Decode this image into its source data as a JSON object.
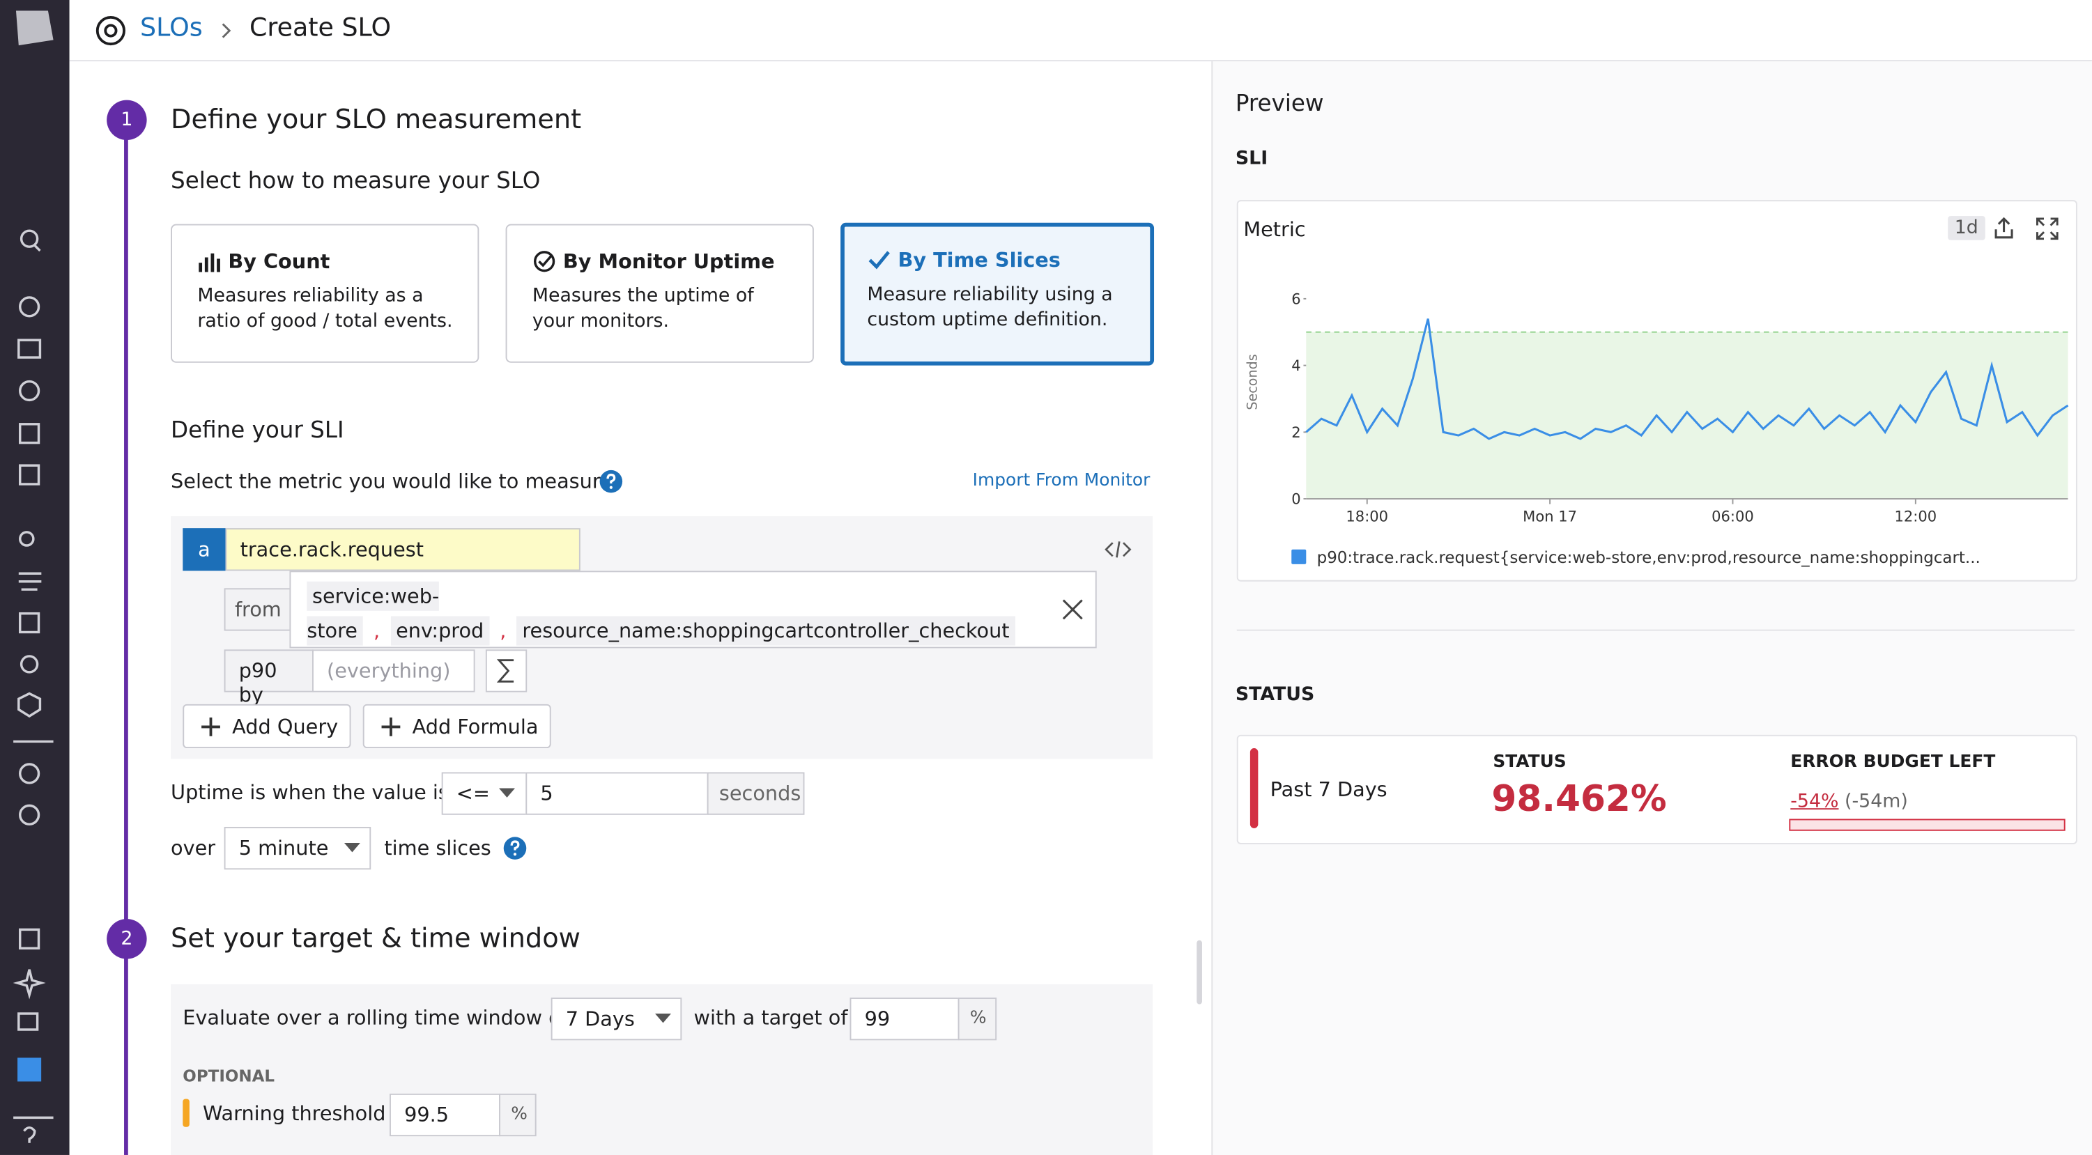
{
  "breadcrumb": {
    "parent": "SLOs",
    "current": "Create SLO"
  },
  "step1": {
    "number": "1",
    "title": "Define your SLO measurement",
    "subtitle": "Select how to measure your SLO",
    "options": [
      {
        "title": "By Count",
        "description": "Measures reliability as a ratio of good / total events."
      },
      {
        "title": "By Monitor Uptime",
        "description": "Measures the uptime of your monitors."
      },
      {
        "title": "By Time Slices",
        "description": "Measure reliability using a custom uptime definition."
      }
    ]
  },
  "sli": {
    "title": "Define your SLI",
    "prompt": "Select the metric you would like to measure.",
    "import_link": "Import From Monitor",
    "query": {
      "letter": "a",
      "metric": "trace.rack.request",
      "from_label": "from",
      "separator": ",",
      "tags": [
        "service:web-store",
        "env:prod",
        "resource_name:shoppingcartcontroller_checkout"
      ],
      "aggregation": "p90 by",
      "group_placeholder": "(everything)"
    },
    "add_query": "Add Query",
    "add_formula": "Add Formula",
    "uptime": {
      "label": "Uptime is when the value is",
      "operator": "<=",
      "threshold": "5",
      "unit": "seconds"
    },
    "over": {
      "label": "over",
      "window": "5 minute",
      "suffix": "time slices"
    }
  },
  "step2": {
    "number": "2",
    "title": "Set your target & time window",
    "window_label": "Evaluate over a rolling time window of",
    "window": "7 Days",
    "target_label": "with a target of",
    "target": "99",
    "target_unit": "%",
    "optional": "OPTIONAL",
    "warning_label": "Warning threshold",
    "warning": "99.5",
    "warning_unit": "%"
  },
  "preview": {
    "title": "Preview",
    "sli_heading": "SLI",
    "widget_title": "Metric",
    "timeframe": "1d",
    "chart_data": {
      "type": "line",
      "y_label": "Seconds",
      "ylim": [
        0,
        7
      ],
      "yticks": [
        0,
        2,
        4,
        6
      ],
      "xlim": [
        16,
        41
      ],
      "xticks": [
        {
          "value": 18,
          "label": "18:00"
        },
        {
          "value": 24,
          "label": "Mon 17"
        },
        {
          "value": 30,
          "label": "06:00"
        },
        {
          "value": 36,
          "label": "12:00"
        }
      ],
      "threshold": 5,
      "x": [
        16,
        16.5,
        17,
        17.5,
        18,
        18.5,
        19,
        19.5,
        20,
        20.5,
        21,
        21.5,
        22,
        22.5,
        23,
        23.5,
        24,
        24.5,
        25,
        25.5,
        26,
        26.5,
        27,
        27.5,
        28,
        28.5,
        29,
        29.5,
        30,
        30.5,
        31,
        31.5,
        32,
        32.5,
        33,
        33.5,
        34,
        34.5,
        35,
        35.5,
        36,
        36.5,
        37,
        37.5,
        38,
        38.5,
        39,
        39.5,
        40,
        40.5,
        41
      ],
      "series": [
        {
          "name": "p90:trace.rack.request{service:web-store,env:prod,resource_name:shoppingcart...",
          "color": "#3a8ee6",
          "values": [
            2.0,
            2.4,
            2.2,
            3.1,
            2.0,
            2.7,
            2.2,
            3.6,
            5.4,
            2.0,
            1.9,
            2.1,
            1.8,
            2.0,
            1.9,
            2.1,
            1.9,
            2.0,
            1.8,
            2.1,
            2.0,
            2.2,
            1.9,
            2.5,
            2.0,
            2.6,
            2.1,
            2.4,
            2.0,
            2.6,
            2.1,
            2.5,
            2.2,
            2.7,
            2.1,
            2.5,
            2.2,
            2.6,
            2.0,
            2.8,
            2.3,
            3.2,
            3.8,
            2.4,
            2.2,
            4.0,
            2.3,
            2.6,
            1.9,
            2.5,
            2.8
          ]
        }
      ]
    }
  },
  "status": {
    "heading": "STATUS",
    "period": "Past 7 Days",
    "status_label": "STATUS",
    "status_value": "98.462%",
    "budget_label": "ERROR BUDGET LEFT",
    "budget_value": "-54%",
    "budget_time": "(-54m)"
  }
}
